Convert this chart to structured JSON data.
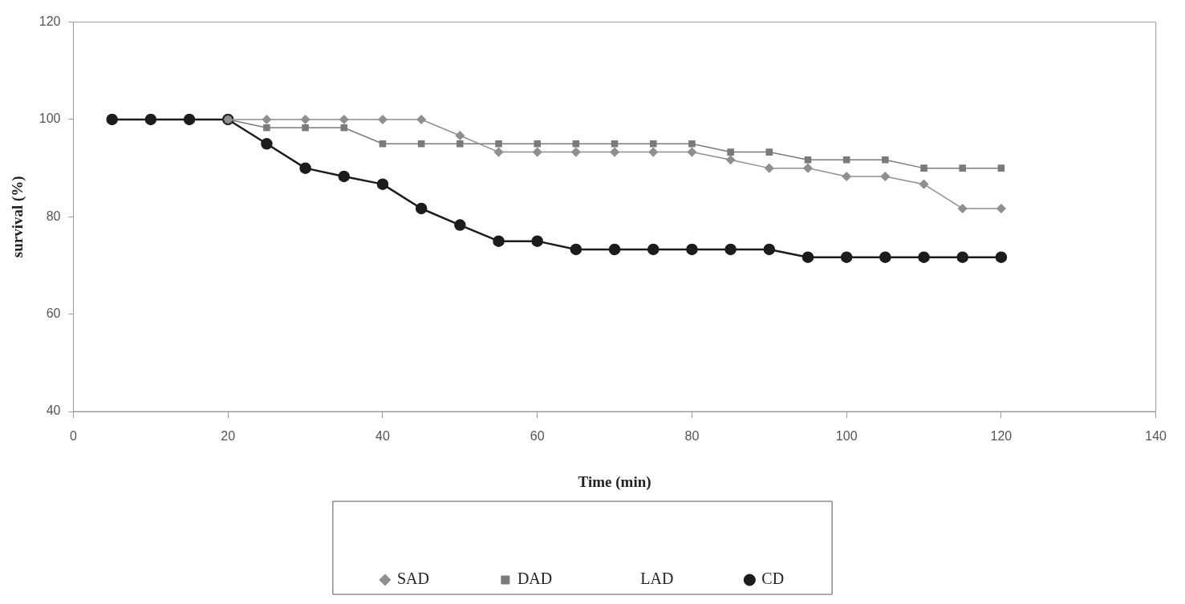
{
  "chart_data": {
    "type": "line",
    "xlabel": "Time (min)",
    "ylabel": "survival (%)",
    "x": [
      5,
      10,
      15,
      20,
      25,
      30,
      35,
      40,
      45,
      50,
      55,
      60,
      65,
      70,
      75,
      80,
      85,
      90,
      95,
      100,
      105,
      110,
      115,
      120
    ],
    "xlim": [
      0,
      140
    ],
    "xticks": [
      0,
      20,
      40,
      60,
      80,
      100,
      120,
      140
    ],
    "ylim": [
      40,
      120
    ],
    "yticks": [
      40,
      60,
      80,
      100,
      120
    ],
    "grid": false,
    "legend": "bottom",
    "series": [
      {
        "name": "SAD",
        "color": "#8f8f8f",
        "marker": "diamond",
        "values": [
          null,
          null,
          null,
          100,
          100,
          100,
          100,
          100,
          100,
          96.7,
          93.3,
          93.3,
          93.3,
          93.3,
          93.3,
          93.3,
          91.7,
          90,
          90,
          88.3,
          88.3,
          86.7,
          81.7,
          81.7
        ]
      },
      {
        "name": "DAD",
        "color": "#7a7a7a",
        "marker": "square",
        "values": [
          null,
          null,
          null,
          100,
          98.3,
          98.3,
          98.3,
          95,
          95,
          95,
          95,
          95,
          95,
          95,
          95,
          95,
          93.3,
          93.3,
          91.7,
          91.7,
          91.7,
          90,
          90,
          90
        ]
      },
      {
        "name": "LAD",
        "marker": "none",
        "values": [
          null,
          null,
          null,
          null,
          null,
          null,
          null,
          null,
          null,
          null,
          null,
          null,
          null,
          null,
          null,
          null,
          null,
          null,
          null,
          null,
          null,
          null,
          null,
          null
        ]
      },
      {
        "name": "CD",
        "color": "#1c1c1c",
        "marker": "circle",
        "values": [
          100,
          100,
          100,
          100,
          95,
          90,
          88.3,
          86.7,
          81.7,
          78.3,
          75,
          75,
          73.3,
          73.3,
          73.3,
          73.3,
          73.3,
          73.3,
          71.7,
          71.7,
          71.7,
          71.7,
          71.7,
          71.7
        ]
      }
    ]
  }
}
